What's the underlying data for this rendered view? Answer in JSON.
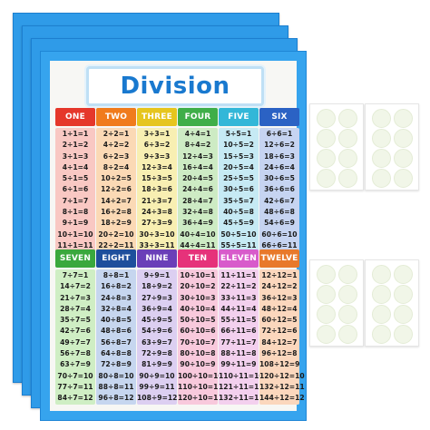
{
  "poster": {
    "title": "Division",
    "colors": {
      "frame": "#36a4ee",
      "title": "#1979cf"
    },
    "columns": [
      {
        "label": "ONE",
        "head": "#e5372b",
        "body": "#f9c8c3",
        "facts": [
          "1÷1=1",
          "2÷1=2",
          "3÷1=3",
          "4÷1=4",
          "5÷1=5",
          "6÷1=6",
          "7÷1=7",
          "8÷1=8",
          "9÷1=9",
          "10÷1=10",
          "11÷1=11",
          "12÷1=12"
        ]
      },
      {
        "label": "TWO",
        "head": "#f07b1c",
        "body": "#fbd9b5",
        "facts": [
          "2÷2=1",
          "4÷2=2",
          "6÷2=3",
          "8÷2=4",
          "10÷2=5",
          "12÷2=6",
          "14÷2=7",
          "16÷2=8",
          "18÷2=9",
          "20÷2=10",
          "22÷2=11",
          "24÷2=12"
        ]
      },
      {
        "label": "THREE",
        "head": "#e6c51e",
        "body": "#f8efb2",
        "facts": [
          "3÷3=1",
          "6÷3=2",
          "9÷3=3",
          "12÷3=4",
          "15÷3=5",
          "18÷3=6",
          "21÷3=7",
          "24÷3=8",
          "27÷3=9",
          "30÷3=10",
          "33÷3=11",
          "36÷3=12"
        ]
      },
      {
        "label": "FOUR",
        "head": "#3fae49",
        "body": "#cdebc4",
        "facts": [
          "4÷4=1",
          "8÷4=2",
          "12÷4=3",
          "16÷4=4",
          "20÷4=5",
          "24÷4=6",
          "28÷4=7",
          "32÷4=8",
          "36÷4=9",
          "40÷4=10",
          "44÷4=11",
          "48÷4=12"
        ]
      },
      {
        "label": "FIVE",
        "head": "#33b7d8",
        "body": "#c6eaf4",
        "facts": [
          "5÷5=1",
          "10÷5=2",
          "15÷5=3",
          "20÷5=4",
          "25÷5=5",
          "30÷5=6",
          "35÷5=7",
          "40÷5=8",
          "45÷5=9",
          "50÷5=10",
          "55÷5=11",
          "60÷5=12"
        ]
      },
      {
        "label": "SIX",
        "head": "#2b62c4",
        "body": "#c6d4f1",
        "facts": [
          "6÷6=1",
          "12÷6=2",
          "18÷6=3",
          "24÷6=4",
          "30÷6=5",
          "36÷6=6",
          "42÷6=7",
          "48÷6=8",
          "54÷6=9",
          "60÷6=10",
          "66÷6=11",
          "72÷6=12"
        ]
      },
      {
        "label": "SEVEN",
        "head": "#3aa83d",
        "body": "#cfeec4",
        "facts": [
          "7÷7=1",
          "14÷7=2",
          "21÷7=3",
          "28÷7=4",
          "35÷7=5",
          "42÷7=6",
          "49÷7=7",
          "56÷7=8",
          "63÷7=9",
          "70÷7=10",
          "77÷7=11",
          "84÷7=12"
        ]
      },
      {
        "label": "EIGHT",
        "head": "#1e4f9c",
        "body": "#c6d6ef",
        "facts": [
          "8÷8=1",
          "16÷8=2",
          "24÷8=3",
          "32÷8=4",
          "40÷8=5",
          "48÷8=6",
          "56÷8=7",
          "64÷8=8",
          "72÷8=9",
          "80÷8=10",
          "88÷8=11",
          "96÷8=12"
        ]
      },
      {
        "label": "NINE",
        "head": "#6a3fb8",
        "body": "#dccff1",
        "facts": [
          "9÷9=1",
          "18÷9=2",
          "27÷9=3",
          "36÷9=4",
          "45÷9=5",
          "54÷9=6",
          "63÷9=7",
          "72÷9=8",
          "81÷9=9",
          "90÷9=10",
          "99÷9=11",
          "108÷9=12"
        ]
      },
      {
        "label": "TEN",
        "head": "#e6327a",
        "body": "#f8c9dc",
        "facts": [
          "10÷10=1",
          "20÷10=2",
          "30÷10=3",
          "40÷10=4",
          "50÷10=5",
          "60÷10=6",
          "70÷10=7",
          "80÷10=8",
          "90÷10=9",
          "100÷10=10",
          "110÷10=11",
          "120÷10=12"
        ]
      },
      {
        "label": "ELEVEN",
        "head": "#d85bcb",
        "body": "#f3d0ee",
        "facts": [
          "11÷11=1",
          "22÷11=2",
          "33÷11=3",
          "44÷11=4",
          "55÷11=5",
          "66÷11=6",
          "77÷11=7",
          "88÷11=8",
          "99÷11=9",
          "110÷11=10",
          "121÷11=11",
          "132÷11=12"
        ]
      },
      {
        "label": "TWELVE",
        "head": "#e8792b",
        "body": "#fbd7bd",
        "facts": [
          "12÷12=1",
          "24÷12=2",
          "36÷12=3",
          "48÷12=4",
          "60÷12=5",
          "72÷12=6",
          "84÷12=7",
          "96÷12=8",
          "108÷12=9",
          "120÷12=10",
          "132÷12=11",
          "144÷12=12"
        ]
      }
    ]
  }
}
